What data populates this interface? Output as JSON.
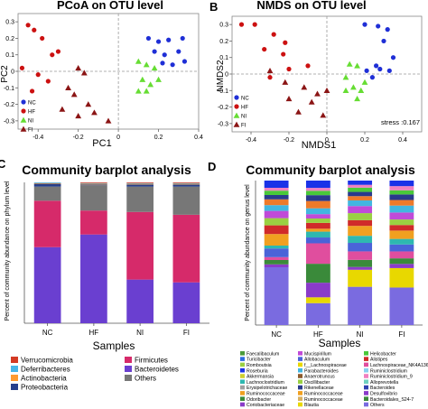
{
  "panels": {
    "A": {
      "letter": ""
    },
    "B": {
      "letter": "B"
    },
    "C": {
      "letter": "C"
    },
    "D": {
      "letter": "D"
    }
  },
  "chart_data": [
    {
      "type": "scatter",
      "title": "PCoA on OTU level",
      "xlabel": "PC1",
      "ylabel": "PC2",
      "xticks": [
        "-0.4",
        "-0.2",
        "0",
        "0.2",
        "0.4"
      ],
      "yticks": [
        "0.3",
        "0.2",
        "0.1",
        "0",
        "-0.1",
        "-0.2",
        "-0.3"
      ],
      "xlim": [
        -0.5,
        0.4
      ],
      "ylim": [
        -0.35,
        0.35
      ],
      "legend": [
        "NC",
        "HF",
        "NI",
        "FI"
      ],
      "legend_position": "bottom-left",
      "series": [
        {
          "name": "NC",
          "color": "#1f2fd6",
          "shape": "circle",
          "points": [
            [
              0.15,
              0.2
            ],
            [
              0.2,
              0.18
            ],
            [
              0.25,
              0.19
            ],
            [
              0.32,
              0.2
            ],
            [
              0.18,
              0.12
            ],
            [
              0.23,
              0.1
            ],
            [
              0.3,
              0.12
            ],
            [
              0.27,
              0.04
            ],
            [
              0.22,
              0.05
            ],
            [
              0.33,
              0.06
            ]
          ]
        },
        {
          "name": "HF",
          "color": "#cc1111",
          "shape": "circle",
          "points": [
            [
              -0.45,
              0.28
            ],
            [
              -0.42,
              0.25
            ],
            [
              -0.38,
              0.2
            ],
            [
              -0.33,
              0.1
            ],
            [
              -0.3,
              0.12
            ],
            [
              -0.4,
              -0.02
            ],
            [
              -0.48,
              0.02
            ],
            [
              -0.35,
              -0.06
            ],
            [
              -0.43,
              -0.12
            ]
          ]
        },
        {
          "name": "NI",
          "color": "#66dd33",
          "shape": "triangle",
          "points": [
            [
              0.1,
              0.06
            ],
            [
              0.14,
              0.04
            ],
            [
              0.18,
              0.02
            ],
            [
              0.12,
              -0.05
            ],
            [
              0.16,
              -0.08
            ],
            [
              0.1,
              -0.12
            ],
            [
              0.14,
              -0.12
            ],
            [
              0.2,
              -0.05
            ]
          ]
        },
        {
          "name": "FI",
          "color": "#8b1515",
          "shape": "triangle",
          "points": [
            [
              -0.2,
              0.02
            ],
            [
              -0.17,
              -0.01
            ],
            [
              -0.25,
              -0.1
            ],
            [
              -0.22,
              -0.14
            ],
            [
              -0.15,
              -0.2
            ],
            [
              -0.28,
              -0.23
            ],
            [
              -0.12,
              -0.25
            ],
            [
              -0.2,
              -0.27
            ],
            [
              -0.05,
              -0.3
            ]
          ]
        }
      ]
    },
    {
      "type": "scatter",
      "title": "NMDS on OTU level",
      "xlabel": "NMDS1",
      "ylabel": "NMDS2",
      "xticks": [
        "-0.4",
        "-0.2",
        "0",
        "0.2",
        "0.4"
      ],
      "yticks": [
        "0.3",
        "0.2",
        "0.1",
        "0",
        "-0.1",
        "-0.2",
        "-0.3"
      ],
      "xlim": [
        -0.5,
        0.5
      ],
      "ylim": [
        -0.35,
        0.35
      ],
      "annotation": "stress :0.167",
      "legend": [
        "NC",
        "HF",
        "NI",
        "FI"
      ],
      "legend_position": "bottom-left",
      "series": [
        {
          "name": "NC",
          "color": "#1f2fd6",
          "shape": "circle",
          "points": [
            [
              0.2,
              0.3
            ],
            [
              0.27,
              0.29
            ],
            [
              0.32,
              0.27
            ],
            [
              0.3,
              0.2
            ],
            [
              0.35,
              0.1
            ],
            [
              0.28,
              0.03
            ],
            [
              0.33,
              0.02
            ],
            [
              0.21,
              0.02
            ],
            [
              0.24,
              -0.02
            ],
            [
              0.26,
              0.05
            ]
          ]
        },
        {
          "name": "HF",
          "color": "#cc1111",
          "shape": "circle",
          "points": [
            [
              -0.45,
              0.3
            ],
            [
              -0.38,
              0.3
            ],
            [
              -0.28,
              0.24
            ],
            [
              -0.22,
              0.19
            ],
            [
              -0.33,
              0.15
            ],
            [
              -0.23,
              0.12
            ],
            [
              -0.1,
              0.05
            ],
            [
              -0.2,
              0.03
            ],
            [
              -0.3,
              -0.02
            ]
          ]
        },
        {
          "name": "NI",
          "color": "#66dd33",
          "shape": "triangle",
          "points": [
            [
              0.12,
              0.06
            ],
            [
              0.16,
              0.05
            ],
            [
              0.1,
              -0.02
            ],
            [
              0.14,
              -0.08
            ],
            [
              0.18,
              -0.1
            ],
            [
              0.1,
              -0.1
            ],
            [
              0.2,
              -0.05
            ],
            [
              0.16,
              -0.15
            ]
          ]
        },
        {
          "name": "FI",
          "color": "#8b1515",
          "shape": "triangle",
          "points": [
            [
              -0.3,
              0.02
            ],
            [
              -0.22,
              -0.05
            ],
            [
              -0.12,
              -0.08
            ],
            [
              -0.2,
              -0.15
            ],
            [
              -0.08,
              -0.17
            ],
            [
              -0.05,
              -0.12
            ],
            [
              0.0,
              -0.1
            ],
            [
              -0.15,
              -0.23
            ],
            [
              -0.02,
              -0.25
            ]
          ]
        }
      ]
    },
    {
      "type": "bar",
      "stacked": true,
      "title": "Community barplot analysis",
      "xlabel": "Samples",
      "ylabel": "Percent of community abundance on phylum level",
      "categories": [
        "NC",
        "HF",
        "NI",
        "FI"
      ],
      "ylim": [
        0,
        1
      ],
      "series": [
        {
          "name": "Bacteroidetes",
          "color": "#6a3fd0",
          "values": [
            0.54,
            0.63,
            0.31,
            0.29
          ]
        },
        {
          "name": "Firmicutes",
          "color": "#d62a6a",
          "values": [
            0.33,
            0.17,
            0.48,
            0.48
          ]
        },
        {
          "name": "Others",
          "color": "#777777",
          "values": [
            0.1,
            0.18,
            0.18,
            0.2
          ]
        },
        {
          "name": "Proteobacteria",
          "color": "#263f8c",
          "values": [
            0.02,
            0.005,
            0.015,
            0.015
          ]
        },
        {
          "name": "Actinobacteria",
          "color": "#ff9a30",
          "values": [
            0.005,
            0.005,
            0.005,
            0.005
          ]
        },
        {
          "name": "Deferribacteres",
          "color": "#48b5e8",
          "values": [
            0.005,
            0.005,
            0.005,
            0.005
          ]
        },
        {
          "name": "Verrucomicrobia",
          "color": "#d43a24",
          "values": [
            0.0,
            0.005,
            0.005,
            0.005
          ]
        }
      ],
      "legend_columns": [
        [
          "Verrucomicrobia",
          "Deferribacteres",
          "Actinobacteria",
          "Proteobacteria"
        ],
        [
          "Firmicutes",
          "Bacteroidetes",
          "Others"
        ]
      ]
    },
    {
      "type": "bar",
      "stacked": true,
      "title": "Community barplot analysis",
      "xlabel": "Samples",
      "ylabel": "Percent of community abundance on genus level",
      "categories": [
        "NC",
        "HF",
        "NI",
        "FI"
      ],
      "ylim": [
        0,
        1
      ],
      "series": [
        {
          "name": "Others",
          "color": "#7a6be0",
          "values": [
            0.4,
            0.15,
            0.27,
            0.27
          ]
        },
        {
          "name": "Blautia",
          "color": "#e8d800",
          "values": [
            0.0,
            0.04,
            0.12,
            0.14
          ]
        },
        {
          "name": "Desulfovibrio",
          "color": "#8a3bc9",
          "values": [
            0.02,
            0.1,
            0.02,
            0.03
          ]
        },
        {
          "name": "Bacteroidales_S24-7",
          "color": "#3a8a3a",
          "values": [
            0.03,
            0.13,
            0.05,
            0.04
          ]
        },
        {
          "name": "Lachnospiraceae_NK4A136",
          "color": "#e04e9e",
          "values": [
            0.02,
            0.14,
            0.06,
            0.05
          ]
        },
        {
          "name": "Allobaculum",
          "color": "#4a63d8",
          "values": [
            0.06,
            0.04,
            0.06,
            0.05
          ]
        },
        {
          "name": "Lachnoclostridium",
          "color": "#2eb8b0",
          "values": [
            0.02,
            0.04,
            0.05,
            0.04
          ]
        },
        {
          "name": "Ruminococcaceae",
          "color": "#f0a020",
          "values": [
            0.08,
            0.02,
            0.07,
            0.06
          ]
        },
        {
          "name": "Alistipes",
          "color": "#d02a2a",
          "values": [
            0.06,
            0.04,
            0.04,
            0.04
          ]
        },
        {
          "name": "Oscillibacter",
          "color": "#9ad042",
          "values": [
            0.05,
            0.03,
            0.05,
            0.04
          ]
        },
        {
          "name": "Muribaculum",
          "color": "#c04ad8",
          "values": [
            0.05,
            0.03,
            0.05,
            0.05
          ]
        },
        {
          "name": "Parabacteroides",
          "color": "#42b6e0",
          "values": [
            0.04,
            0.04,
            0.04,
            0.05
          ]
        },
        {
          "name": "Mucispirillum",
          "color": "#ee7a2a",
          "values": [
            0.04,
            0.05,
            0.03,
            0.04
          ]
        },
        {
          "name": "Rikenellaceae",
          "color": "#2a3a8c",
          "values": [
            0.03,
            0.04,
            0.03,
            0.04
          ]
        },
        {
          "name": "Helicobacter",
          "color": "#4ac83a",
          "values": [
            0.03,
            0.03,
            0.03,
            0.03
          ]
        },
        {
          "name": "Faecalibaculum",
          "color": "#f080c0",
          "values": [
            0.02,
            0.02,
            0.02,
            0.03
          ]
        },
        {
          "name": "Roseburia",
          "color": "#1a32e8",
          "values": [
            0.05,
            0.05,
            0.03,
            0.04
          ]
        }
      ],
      "legend_columns": [
        [
          "Faecalibaculum",
          "Turicibacter",
          "Romboutsia",
          "Roseburia",
          "Akkermansia",
          "Lachnoclostridium",
          "Erysipelotrichaceae",
          "Ruminococcaceae",
          "Odoribacter",
          "Coriobacteriaceae"
        ],
        [
          "Mucispirillum",
          "Allobaculum",
          "f__Lachnospiraceae",
          "Parabacteroides",
          "Anaerotruncus",
          "Oscillibacter",
          "Rikenellaceae",
          "Ruminococcaceae",
          "Ruminococcaceae",
          "Blautia"
        ],
        [
          "Helicobacter",
          "Alistipes",
          "Lachnospiraceae_NK4A136",
          "Ruminiclostridium",
          "Ruminiclostridium_9",
          "Alloprevotella",
          "Bacteroides",
          "Desulfovibrio",
          "Bacteroidales_S24-7",
          "Others"
        ]
      ],
      "legend_colors": [
        [
          "#4a9a3a",
          "#2e6be0",
          "#9ad042",
          "#1a32e8",
          "#d0d030",
          "#2eb8b0",
          "#a0a0a0",
          "#f0a020",
          "#3a8a3a",
          "#8a3bc9"
        ],
        [
          "#c04ad8",
          "#4a63d8",
          "#e8d800",
          "#42b6e0",
          "#8b5a2b",
          "#9ad042",
          "#2a3a8c",
          "#f0a020",
          "#d8b060",
          "#e8d800"
        ],
        [
          "#4ac83a",
          "#d02a2a",
          "#e04e9e",
          "#8ad0f0",
          "#f080c0",
          "#70d0c0",
          "#3040b0",
          "#8a3bc9",
          "#3a8a3a",
          "#7a6be0"
        ]
      ]
    }
  ]
}
